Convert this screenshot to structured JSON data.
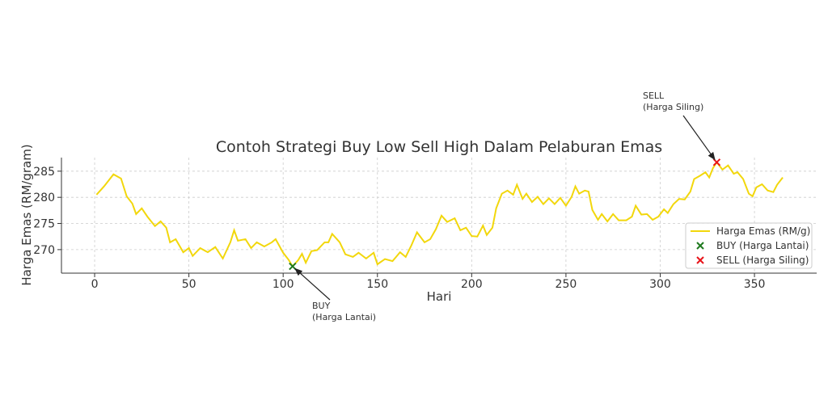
{
  "chart_data": {
    "type": "line",
    "title": "Contoh Strategi Buy Low Sell High Dalam Pelaburan Emas",
    "x_label": "Hari",
    "y_label": "Harga Emas (RM/gram)",
    "xlim": [
      -17.6,
      383
    ],
    "ylim": [
      265.5,
      287.6
    ],
    "xticks": [
      0,
      50,
      100,
      150,
      200,
      250,
      300,
      350
    ],
    "yticks": [
      270,
      275,
      280,
      285
    ],
    "grid": true,
    "legend": "lower right",
    "series": [
      {
        "name": "Harga Emas (RM/g)",
        "color": "#f2d70c",
        "type": "line",
        "x": [
          1,
          5,
          10,
          14,
          17,
          20,
          22,
          25,
          28,
          32,
          35,
          38,
          40,
          43,
          47,
          50,
          52,
          56,
          60,
          64,
          68,
          72,
          74,
          76,
          80,
          83,
          86,
          90,
          94,
          96,
          100,
          103,
          105,
          108,
          110,
          112,
          115,
          118,
          122,
          124,
          126,
          130,
          133,
          137,
          140,
          144,
          148,
          150,
          154,
          158,
          162,
          165,
          168,
          171,
          175,
          178,
          181,
          184,
          187,
          191,
          194,
          197,
          200,
          203,
          206,
          208,
          211,
          213,
          216,
          219,
          222,
          224,
          227,
          229,
          232,
          235,
          238,
          241,
          244,
          247,
          250,
          253,
          255,
          257,
          260,
          262,
          264,
          267,
          269,
          272,
          275,
          278,
          282,
          285,
          287,
          290,
          293,
          296,
          299,
          302,
          304,
          307,
          310,
          313,
          316,
          318,
          321,
          324,
          326,
          328,
          330,
          333,
          336,
          339,
          341,
          344,
          347,
          349,
          351,
          354,
          357,
          360,
          362,
          365
        ],
        "values": [
          280.5,
          282.1,
          284.4,
          283.6,
          280.2,
          278.8,
          276.8,
          277.9,
          276.3,
          274.5,
          275.4,
          274.2,
          271.4,
          272,
          269.5,
          270.3,
          268.8,
          270.3,
          269.5,
          270.5,
          268.3,
          271.4,
          273.7,
          271.7,
          272,
          270.3,
          271.4,
          270.6,
          271.4,
          272,
          269.4,
          268,
          266.8,
          268,
          269.2,
          267.5,
          269.7,
          269.9,
          271.4,
          271.4,
          273,
          271.4,
          269.1,
          268.6,
          269.4,
          268.3,
          269.4,
          267.2,
          268.2,
          267.8,
          269.5,
          268.6,
          270.8,
          273.3,
          271.4,
          272,
          273.9,
          276.5,
          275.3,
          276,
          273.7,
          274.2,
          272.6,
          272.5,
          274.6,
          272.8,
          274.2,
          277.9,
          280.7,
          281.3,
          280.5,
          282.4,
          279.7,
          280.7,
          279.1,
          280.1,
          278.7,
          279.8,
          278.7,
          279.9,
          278.4,
          280.1,
          282.1,
          280.7,
          281.3,
          281.1,
          277.6,
          275.7,
          276.8,
          275.4,
          276.8,
          275.6,
          275.6,
          276.3,
          278.4,
          276.7,
          276.8,
          275.7,
          276.3,
          277.7,
          277,
          278.7,
          279.7,
          279.6,
          281.1,
          283.5,
          284.1,
          284.8,
          283.8,
          285.6,
          286.7,
          285.3,
          286.1,
          284.5,
          284.8,
          283.5,
          280.7,
          280.2,
          281.9,
          282.5,
          281.3,
          281,
          282.4,
          283.8
        ]
      },
      {
        "name": "BUY (Harga Lantai)",
        "color": "#1f7a1f",
        "type": "scatter",
        "x": [
          105
        ],
        "values": [
          266.8
        ]
      },
      {
        "name": "SELL (Harga Siling)",
        "color": "#e8141a",
        "type": "scatter",
        "x": [
          330
        ],
        "values": [
          286.7
        ]
      }
    ],
    "annotations": [
      {
        "series": 1,
        "lines": [
          "BUY",
          "(Harga Lantai)"
        ]
      },
      {
        "series": 2,
        "lines": [
          "SELL",
          "(Harga Siling)"
        ]
      }
    ]
  }
}
